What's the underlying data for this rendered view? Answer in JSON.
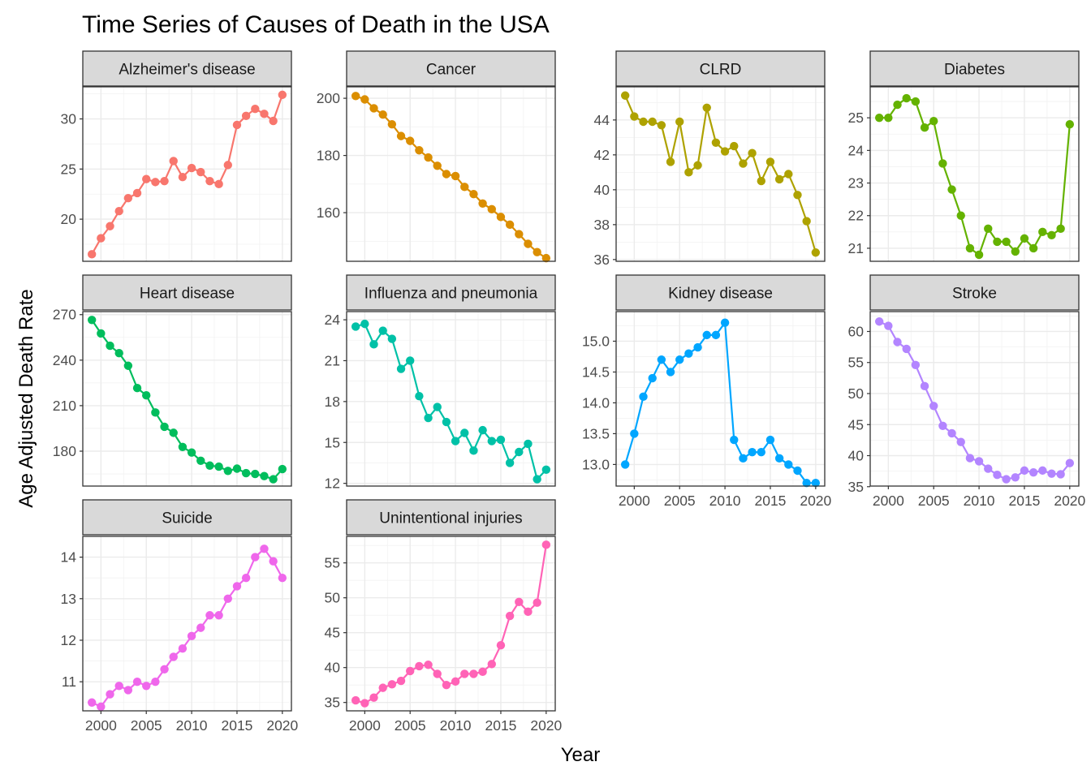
{
  "chart_data": {
    "type": "line",
    "title": "Time Series of Causes of Death in the USA",
    "xlabel": "Year",
    "ylabel": "Age Adjusted Death Rate",
    "x": [
      1999,
      2000,
      2001,
      2002,
      2003,
      2004,
      2005,
      2006,
      2007,
      2008,
      2009,
      2010,
      2011,
      2012,
      2013,
      2014,
      2015,
      2016,
      2017,
      2018,
      2019,
      2020
    ],
    "x_ticks": [
      2000,
      2005,
      2010,
      2015,
      2020
    ],
    "xlim": [
      1998,
      2021
    ],
    "grid": true,
    "legend": "none",
    "panels": [
      {
        "name": "Alzheimer's disease",
        "color": "#F8766D",
        "ylim": [
          15.8,
          33.2
        ],
        "y_ticks": [
          20,
          25,
          30
        ],
        "values": [
          16.5,
          18.1,
          19.3,
          20.8,
          22.1,
          22.6,
          24.0,
          23.7,
          23.8,
          25.8,
          24.2,
          25.1,
          24.7,
          23.8,
          23.5,
          25.4,
          29.4,
          30.3,
          31.0,
          30.5,
          29.8,
          32.4
        ]
      },
      {
        "name": "Cancer",
        "color": "#DB8E00",
        "ylim": [
          143,
          204
        ],
        "y_ticks": [
          160,
          180,
          200
        ],
        "values": [
          200.8,
          199.6,
          196.5,
          194.3,
          190.9,
          186.8,
          185.1,
          181.8,
          179.3,
          176.4,
          173.5,
          172.8,
          169.0,
          166.5,
          163.2,
          161.2,
          158.5,
          155.8,
          152.5,
          149.1,
          146.2,
          144.1
        ]
      },
      {
        "name": "CLRD",
        "color": "#AEA200",
        "ylim": [
          35.9,
          45.9
        ],
        "y_ticks": [
          36,
          38,
          40,
          42,
          44
        ],
        "values": [
          45.4,
          44.2,
          43.9,
          43.9,
          43.7,
          41.6,
          43.9,
          41.0,
          41.4,
          44.7,
          42.7,
          42.2,
          42.5,
          41.5,
          42.1,
          40.5,
          41.6,
          40.6,
          40.9,
          39.7,
          38.2,
          36.4
        ]
      },
      {
        "name": "Diabetes",
        "color": "#64B200",
        "ylim": [
          20.6,
          25.95
        ],
        "y_ticks": [
          21,
          22,
          23,
          24,
          25
        ],
        "values": [
          25.0,
          25.0,
          25.4,
          25.6,
          25.5,
          24.7,
          24.9,
          23.6,
          22.8,
          22.0,
          21.0,
          20.8,
          21.6,
          21.2,
          21.2,
          20.9,
          21.3,
          21.0,
          21.5,
          21.4,
          21.6,
          24.8
        ]
      },
      {
        "name": "Heart disease",
        "color": "#00BD5C",
        "ylim": [
          157,
          272
        ],
        "y_ticks": [
          180,
          210,
          240,
          270
        ],
        "values": [
          266.5,
          257.6,
          249.5,
          244.6,
          236.3,
          221.6,
          216.8,
          205.5,
          196.1,
          192.1,
          182.8,
          179.1,
          173.7,
          170.5,
          169.8,
          167.0,
          168.5,
          165.5,
          165.0,
          163.6,
          161.5,
          168.2
        ]
      },
      {
        "name": "Influenza and pneumonia",
        "color": "#00C1A7",
        "ylim": [
          11.8,
          24.6
        ],
        "y_ticks": [
          12,
          15,
          18,
          21,
          24
        ],
        "values": [
          23.5,
          23.7,
          22.2,
          23.2,
          22.6,
          20.4,
          21.0,
          18.4,
          16.8,
          17.6,
          16.5,
          15.1,
          15.7,
          14.4,
          15.9,
          15.1,
          15.2,
          13.5,
          14.3,
          14.9,
          12.3,
          13.0
        ]
      },
      {
        "name": "Kidney disease",
        "color": "#00A6FF",
        "ylim": [
          12.65,
          15.48
        ],
        "y_ticks": [
          13.0,
          13.5,
          14.0,
          14.5,
          15.0
        ],
        "values": [
          13.0,
          13.5,
          14.1,
          14.4,
          14.7,
          14.5,
          14.7,
          14.8,
          14.9,
          15.1,
          15.1,
          15.3,
          13.4,
          13.1,
          13.2,
          13.2,
          13.4,
          13.1,
          13.0,
          12.9,
          12.7,
          12.7
        ]
      },
      {
        "name": "Stroke",
        "color": "#B385FF",
        "ylim": [
          35.1,
          63.2
        ],
        "y_ticks": [
          35,
          40,
          45,
          50,
          55,
          60
        ],
        "values": [
          61.6,
          60.9,
          58.3,
          57.2,
          54.6,
          51.2,
          48.0,
          44.8,
          43.6,
          42.2,
          39.6,
          39.1,
          37.9,
          36.9,
          36.2,
          36.5,
          37.6,
          37.3,
          37.6,
          37.1,
          37.0,
          38.8
        ]
      },
      {
        "name": "Suicide",
        "color": "#EF67EB",
        "ylim": [
          10.3,
          14.5
        ],
        "y_ticks": [
          11,
          12,
          13,
          14
        ],
        "values": [
          10.5,
          10.4,
          10.7,
          10.9,
          10.8,
          11.0,
          10.9,
          11.0,
          11.3,
          11.6,
          11.8,
          12.1,
          12.3,
          12.6,
          12.6,
          13.0,
          13.3,
          13.5,
          14.0,
          14.2,
          13.9,
          13.5
        ]
      },
      {
        "name": "Unintentional injuries",
        "color": "#FF63B6",
        "ylim": [
          33.8,
          58.8
        ],
        "y_ticks": [
          35,
          40,
          45,
          50,
          55
        ],
        "values": [
          35.3,
          34.9,
          35.7,
          37.1,
          37.6,
          38.1,
          39.5,
          40.2,
          40.4,
          39.1,
          37.5,
          38.0,
          39.1,
          39.1,
          39.4,
          40.5,
          43.2,
          47.4,
          49.4,
          48.0,
          49.3,
          57.6
        ]
      }
    ]
  }
}
